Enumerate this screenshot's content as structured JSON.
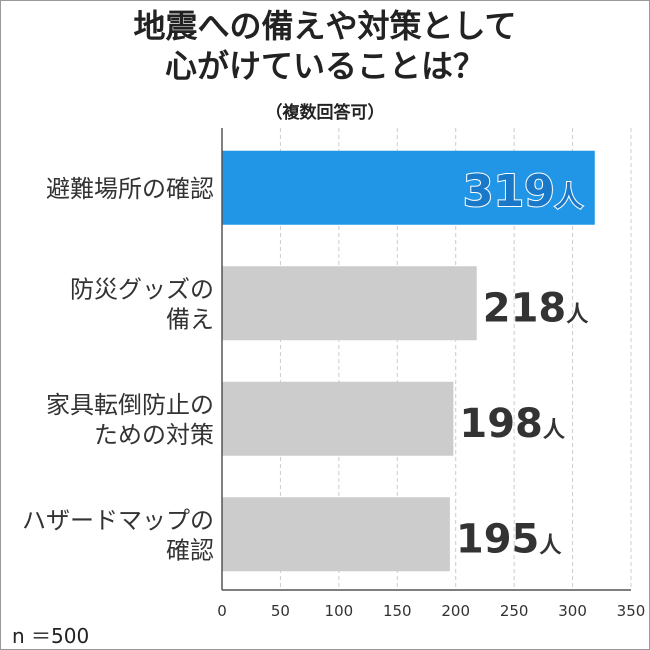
{
  "chart_data": {
    "type": "bar",
    "orientation": "horizontal",
    "title_lines": [
      "地震への備えや対策として",
      "心がけていることは？"
    ],
    "subtitle": "（複数回答可）",
    "categories": [
      [
        "避難場所の確認"
      ],
      [
        "防災グッズの",
        "備え"
      ],
      [
        "家具転倒防止の",
        "ための対策"
      ],
      [
        "ハザードマップの",
        "確認"
      ]
    ],
    "values": [
      319,
      218,
      198,
      195
    ],
    "unit": "人",
    "xlim": [
      0,
      350
    ],
    "xticks": [
      "0",
      "50",
      "100",
      "150",
      "200",
      "250",
      "300",
      "350"
    ],
    "grid": true,
    "sample_size": "n ＝500",
    "colors": {
      "highlight": "#2196e6",
      "highlight_label": "#1a78c8",
      "bar": "#cccccc",
      "label": "#333333",
      "grid": "#cccccc"
    }
  }
}
